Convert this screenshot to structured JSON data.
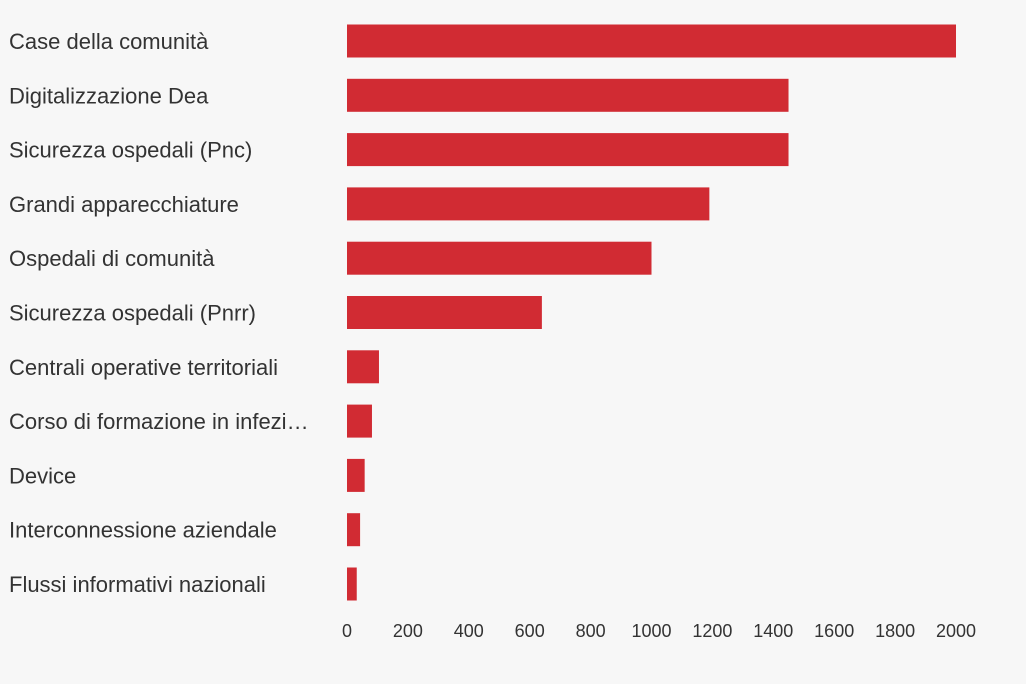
{
  "chart_data": {
    "type": "bar",
    "orientation": "horizontal",
    "categories": [
      "Case della comunità",
      "Digitalizzazione Dea",
      "Sicurezza ospedali (Pnc)",
      "Grandi apparecchiature",
      "Ospedali di comunità",
      "Sicurezza ospedali (Pnrr)",
      "Centrali operative territoriali",
      "Corso di formazione in infezi…",
      "Device",
      "Interconnessione aziendale",
      "Flussi informativi nazionali"
    ],
    "values": [
      2000,
      1450,
      1450,
      1190,
      1000,
      640,
      105,
      82,
      58,
      43,
      32
    ],
    "title": "",
    "xlabel": "",
    "ylabel": "",
    "xlim": [
      0,
      2000
    ],
    "x_ticks": [
      "0",
      "200",
      "400",
      "600",
      "800",
      "1000",
      "1200",
      "1400",
      "1600",
      "1800",
      "2000"
    ],
    "grid": false,
    "legend": "none",
    "colors": {
      "bar": "#d12b33",
      "background": "#f7f7f7",
      "text": "#333333"
    }
  }
}
